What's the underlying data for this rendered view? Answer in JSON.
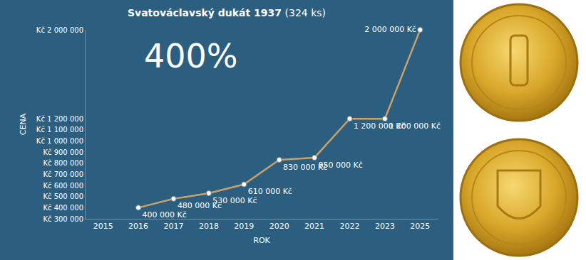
{
  "chart_data": {
    "type": "line",
    "title": "Svatováclavský dukát 1937",
    "subtitle": "(324 ks)",
    "annotations": [
      "400%"
    ],
    "x_label": "ROK",
    "y_label": "CENA",
    "categories": [
      "2015",
      "2016",
      "2017",
      "2018",
      "2019",
      "2020",
      "2021",
      "2022",
      "2023",
      "2025"
    ],
    "values": [
      null,
      400000,
      480000,
      530000,
      610000,
      830000,
      850000,
      1200000,
      1200000,
      2000000
    ],
    "value_labels": [
      null,
      "400 000 Kč",
      "480 000 Kč",
      "530 000 Kč",
      "610 000 Kč",
      "830 000 Kč",
      "850 000 Kč",
      "1 200 000 Kč",
      "1 200 000 Kč",
      "2 000 000 Kč"
    ],
    "data_labels": true,
    "color": "#c8a06a",
    "marker": "circle",
    "grid": false,
    "ylim": [
      300000,
      2000000
    ],
    "yticks": [
      {
        "value": 300000,
        "label": "Kč 300 000"
      },
      {
        "value": 400000,
        "label": "Kč 400 000"
      },
      {
        "value": 500000,
        "label": "Kč 500 000"
      },
      {
        "value": 600000,
        "label": "Kč 600 000"
      },
      {
        "value": 700000,
        "label": "Kč 700 000"
      },
      {
        "value": 800000,
        "label": "Kč 800 000"
      },
      {
        "value": 900000,
        "label": "Kč 900 000"
      },
      {
        "value": 1000000,
        "label": "Kč 1 000 000"
      },
      {
        "value": 1100000,
        "label": "Kč 1 100 000"
      },
      {
        "value": 1200000,
        "label": "Kč 1 200 000"
      },
      {
        "value": 2000000,
        "label": "Kč 2 000 000"
      }
    ]
  }
}
